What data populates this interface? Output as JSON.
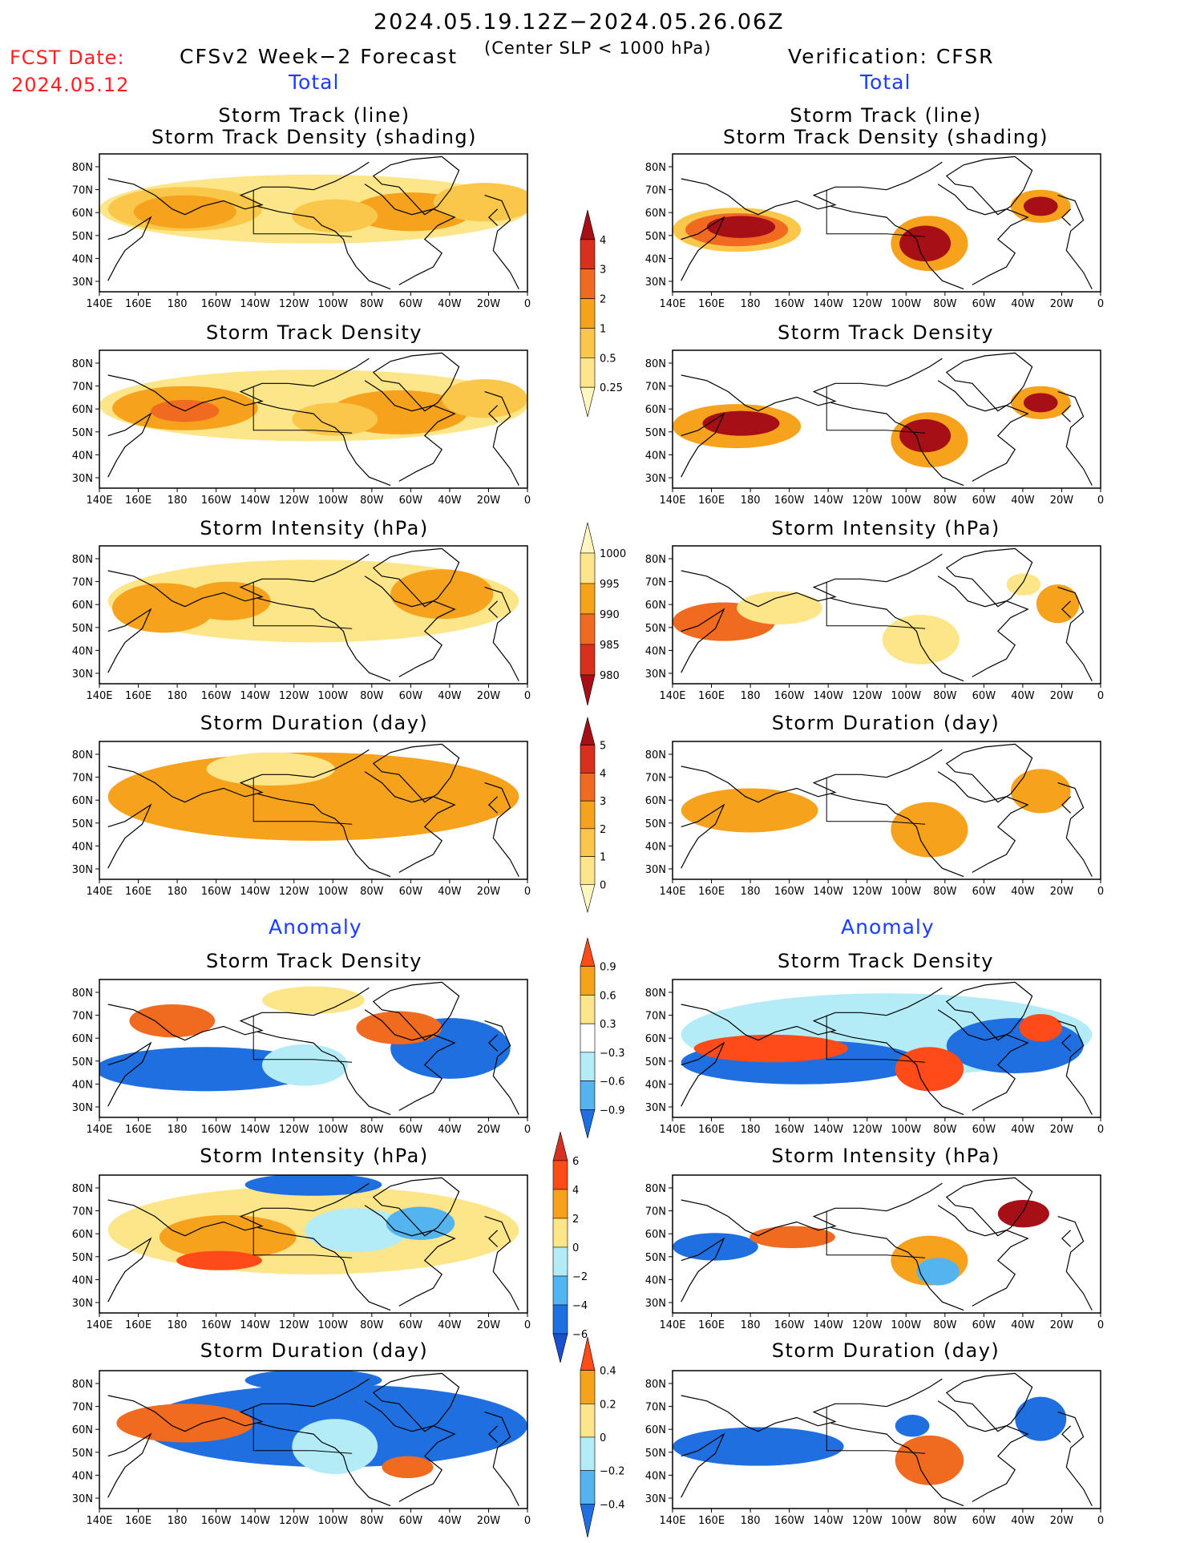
{
  "header": {
    "fcst_label": "FCST Date:",
    "fcst_date": "2024.05.12",
    "period": "2024.05.19.12Z−2024.05.26.06Z",
    "model": "CFSv2 Week−2 Forecast",
    "criterion": "(Center SLP < 1000 hPa)",
    "verification": "Verification: CFSR"
  },
  "sections": {
    "total_left": "Total",
    "total_right": "Total",
    "anomaly_left": "Anomaly",
    "anomaly_right": "Anomaly"
  },
  "axes": {
    "lat_ticks": [
      "80N",
      "70N",
      "60N",
      "50N",
      "40N",
      "30N"
    ],
    "lon_ticks": [
      "140E",
      "160E",
      "180",
      "160W",
      "140W",
      "120W",
      "100W",
      "80W",
      "60W",
      "40W",
      "20W",
      "0"
    ]
  },
  "panels": {
    "l1": {
      "title1": "Storm Track (line)",
      "title2": "Storm Track Density (shading)"
    },
    "r1": {
      "title1": "Storm Track (line)",
      "title2": "Storm Track Density (shading)"
    },
    "l2": {
      "title": "Storm Track Density"
    },
    "r2": {
      "title": "Storm Track Density"
    },
    "l3": {
      "title": "Storm Intensity (hPa)"
    },
    "r3": {
      "title": "Storm Intensity (hPa)"
    },
    "l4": {
      "title": "Storm Duration (day)"
    },
    "r4": {
      "title": "Storm Duration (day)"
    },
    "l5": {
      "title": "Storm Track Density"
    },
    "r5": {
      "title": "Storm Track Density"
    },
    "l6": {
      "title": "Storm Intensity (hPa)"
    },
    "r6": {
      "title": "Storm Intensity (hPa)"
    },
    "l7": {
      "title": "Storm Duration (day)"
    },
    "r7": {
      "title": "Storm Duration (day)"
    }
  },
  "colorbars": {
    "density_total": {
      "labels": [
        "4",
        "3",
        "2",
        "1",
        "0.5",
        "0.25"
      ],
      "colors": [
        "#a50f15",
        "#d7301f",
        "#f06a20",
        "#f7a21c",
        "#fbc74a",
        "#fde68a",
        "#fff6c0"
      ]
    },
    "intensity_total": {
      "labels": [
        "1000",
        "995",
        "990",
        "985",
        "980"
      ],
      "colors": [
        "#fff6c0",
        "#fde68a",
        "#f7a21c",
        "#f06a20",
        "#d7301f",
        "#a50f15"
      ]
    },
    "duration_total": {
      "labels": [
        "5",
        "4",
        "3",
        "2",
        "1",
        "0"
      ],
      "colors": [
        "#a50f15",
        "#d7301f",
        "#f06a20",
        "#f7a21c",
        "#fbc74a",
        "#fde68a",
        "#fff6c0"
      ]
    },
    "density_anom": {
      "labels": [
        "0.9",
        "0.6",
        "0.3",
        "−0.3",
        "−0.6",
        "−0.9"
      ],
      "colors": [
        "#ff4a1a",
        "#f7a21c",
        "#fde68a",
        "#ffffff",
        "#b3ecf7",
        "#53b4f0",
        "#1f6fe0"
      ]
    },
    "intensity_anom": {
      "labels": [
        "6",
        "4",
        "2",
        "0",
        "−2",
        "−4",
        "−6"
      ],
      "colors": [
        "#d7301f",
        "#ff4a1a",
        "#f7a21c",
        "#fde68a",
        "#b3ecf7",
        "#53b4f0",
        "#1f6fe0",
        "#1a4fd0"
      ]
    },
    "duration_anom": {
      "labels": [
        "0.4",
        "0.2",
        "0",
        "−0.2",
        "−0.4"
      ],
      "colors": [
        "#ff4a1a",
        "#f7a21c",
        "#fde68a",
        "#b3ecf7",
        "#53b4f0",
        "#1f6fe0"
      ]
    }
  }
}
